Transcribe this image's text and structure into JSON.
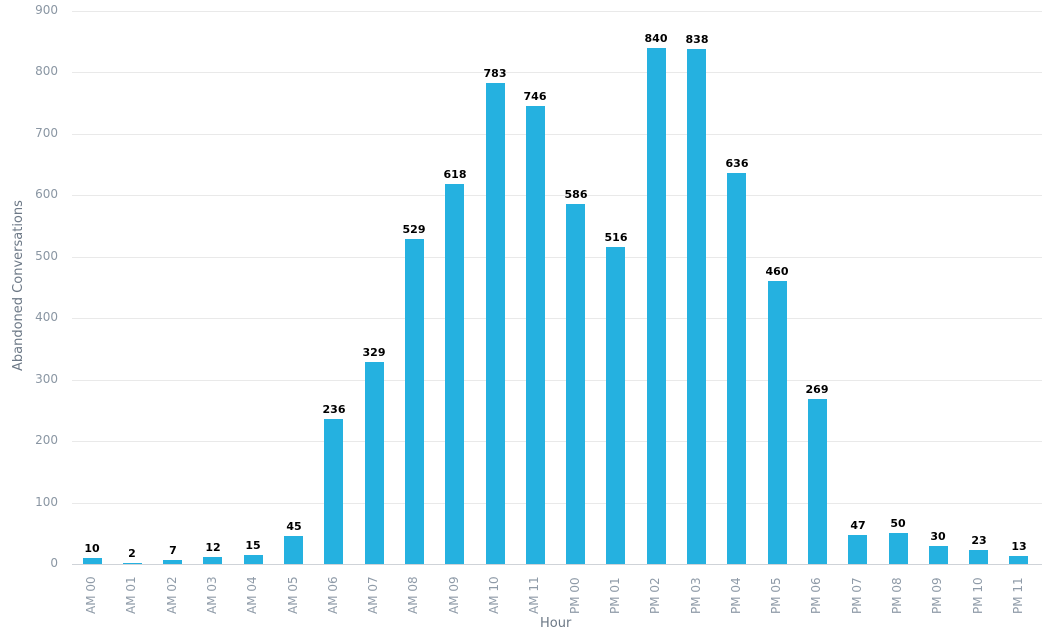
{
  "chart_data": {
    "type": "bar",
    "title": "",
    "xlabel": "Hour",
    "ylabel": "Abandoned Conversations",
    "ylim": [
      0,
      900
    ],
    "yticks": [
      0,
      100,
      200,
      300,
      400,
      500,
      600,
      700,
      800,
      900
    ],
    "grid": true,
    "legend": null,
    "bar_color": "#25b1e0",
    "data_labels": true,
    "categories": [
      "AM 00",
      "AM 01",
      "AM 02",
      "AM 03",
      "AM 04",
      "AM 05",
      "AM 06",
      "AM 07",
      "AM 08",
      "AM 09",
      "AM 10",
      "AM 11",
      "PM 00",
      "PM 01",
      "PM 02",
      "PM 03",
      "PM 04",
      "PM 05",
      "PM 06",
      "PM 07",
      "PM 08",
      "PM 09",
      "PM 10",
      "PM 11"
    ],
    "values": [
      10,
      2,
      7,
      12,
      15,
      45,
      236,
      329,
      529,
      618,
      783,
      746,
      586,
      516,
      840,
      838,
      636,
      460,
      269,
      47,
      50,
      30,
      23,
      13
    ]
  }
}
